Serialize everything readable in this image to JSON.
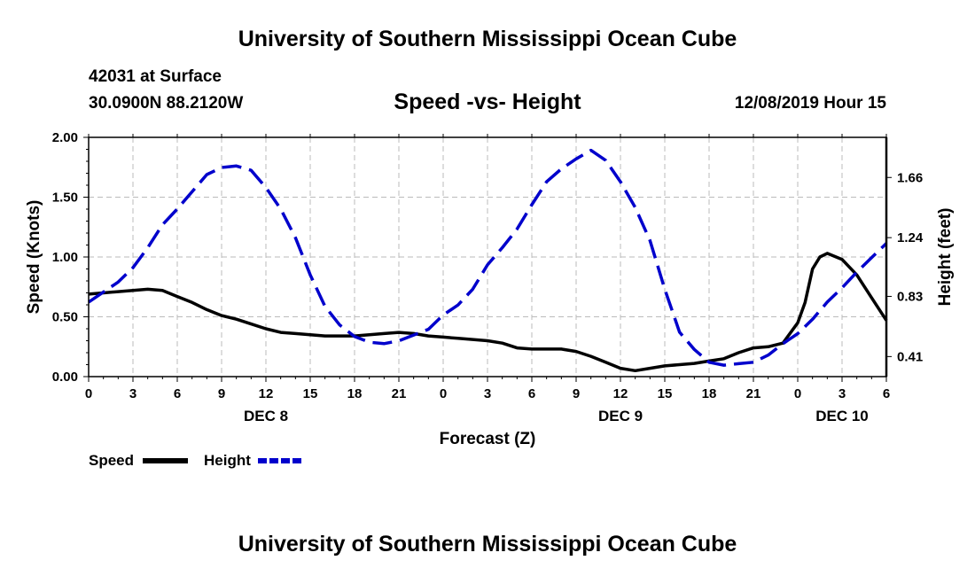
{
  "header": {
    "title": "University of Southern Mississippi Ocean Cube",
    "station": "42031 at Surface",
    "coords": "30.0900N 88.2120W",
    "chart_title": "Speed -vs- Height",
    "datetime": "12/08/2019 Hour 15"
  },
  "footer": {
    "title": "University of Southern Mississippi Ocean Cube"
  },
  "legend": {
    "speed_label": "Speed",
    "height_label": "Height"
  },
  "colors": {
    "speed": "#000000",
    "height": "#0000cc",
    "grid": "#bbbbbb"
  },
  "chart_data": {
    "type": "line",
    "title": "Speed -vs- Height",
    "xlabel": "Forecast (Z)",
    "ylabel_left": "Speed (Knots)",
    "ylabel_right": "Height (feet)",
    "xlim": [
      0,
      54
    ],
    "ylim_left": [
      0,
      2.0
    ],
    "ylim_right": [
      0.27,
      1.94
    ],
    "x_ticks": [
      0,
      3,
      6,
      9,
      12,
      15,
      18,
      21,
      24,
      27,
      30,
      33,
      36,
      39,
      42,
      45,
      48,
      51,
      54
    ],
    "x_tick_labels": [
      "0",
      "3",
      "6",
      "9",
      "12",
      "15",
      "18",
      "21",
      "0",
      "3",
      "6",
      "9",
      "12",
      "15",
      "18",
      "21",
      "0",
      "3",
      "6"
    ],
    "date_labels": [
      {
        "x": 12,
        "label": "DEC 8"
      },
      {
        "x": 36,
        "label": "DEC 9"
      },
      {
        "x": 51,
        "label": "DEC 10"
      }
    ],
    "y_ticks_left": [
      0.0,
      0.5,
      1.0,
      1.5,
      2.0
    ],
    "y_tick_labels_left": [
      "0.00",
      "0.50",
      "1.00",
      "1.50",
      "2.00"
    ],
    "y_ticks_right": [
      0.41,
      0.83,
      1.24,
      1.66
    ],
    "y_tick_labels_right": [
      "0.41",
      "0.83",
      "1.24",
      "1.66"
    ],
    "grid": true,
    "series": [
      {
        "name": "Speed",
        "axis": "left",
        "style": "solid",
        "x": [
          0,
          1,
          2,
          3,
          4,
          5,
          6,
          7,
          8,
          9,
          10,
          11,
          12,
          13,
          14,
          15,
          16,
          17,
          18,
          19,
          20,
          21,
          22,
          23,
          24,
          25,
          26,
          27,
          28,
          29,
          30,
          31,
          32,
          33,
          34,
          35,
          36,
          37,
          38,
          39,
          40,
          41,
          42,
          43,
          44,
          45,
          46,
          47,
          48,
          48.5,
          49,
          49.5,
          50,
          51,
          52,
          53,
          54
        ],
        "y": [
          0.69,
          0.7,
          0.71,
          0.72,
          0.73,
          0.72,
          0.67,
          0.62,
          0.56,
          0.51,
          0.48,
          0.44,
          0.4,
          0.37,
          0.36,
          0.35,
          0.34,
          0.34,
          0.34,
          0.35,
          0.36,
          0.37,
          0.36,
          0.34,
          0.33,
          0.32,
          0.31,
          0.3,
          0.28,
          0.24,
          0.23,
          0.23,
          0.23,
          0.21,
          0.17,
          0.12,
          0.07,
          0.05,
          0.07,
          0.09,
          0.1,
          0.11,
          0.13,
          0.15,
          0.2,
          0.24,
          0.25,
          0.28,
          0.45,
          0.62,
          0.9,
          1.0,
          1.03,
          0.98,
          0.85,
          0.66,
          0.47
        ]
      },
      {
        "name": "Height",
        "axis": "right",
        "style": "dashed",
        "x": [
          0,
          1,
          2,
          3,
          4,
          5,
          6,
          7,
          8,
          9,
          10,
          11,
          12,
          13,
          14,
          15,
          16,
          17,
          18,
          19,
          20,
          21,
          22,
          23,
          24,
          25,
          26,
          27,
          28,
          29,
          30,
          31,
          32,
          33,
          34,
          35,
          36,
          37,
          38,
          39,
          40,
          41,
          42,
          43,
          44,
          45,
          46,
          47,
          48,
          49,
          50,
          51,
          52,
          53,
          54
        ],
        "y": [
          0.79,
          0.86,
          0.93,
          1.03,
          1.17,
          1.33,
          1.44,
          1.56,
          1.68,
          1.73,
          1.74,
          1.71,
          1.59,
          1.44,
          1.24,
          0.98,
          0.76,
          0.63,
          0.55,
          0.51,
          0.5,
          0.52,
          0.56,
          0.6,
          0.7,
          0.77,
          0.88,
          1.05,
          1.17,
          1.3,
          1.47,
          1.63,
          1.72,
          1.79,
          1.85,
          1.78,
          1.63,
          1.45,
          1.22,
          0.88,
          0.58,
          0.46,
          0.37,
          0.35,
          0.36,
          0.37,
          0.42,
          0.5,
          0.57,
          0.67,
          0.79,
          0.89,
          1.0,
          1.1,
          1.2
        ]
      }
    ]
  }
}
